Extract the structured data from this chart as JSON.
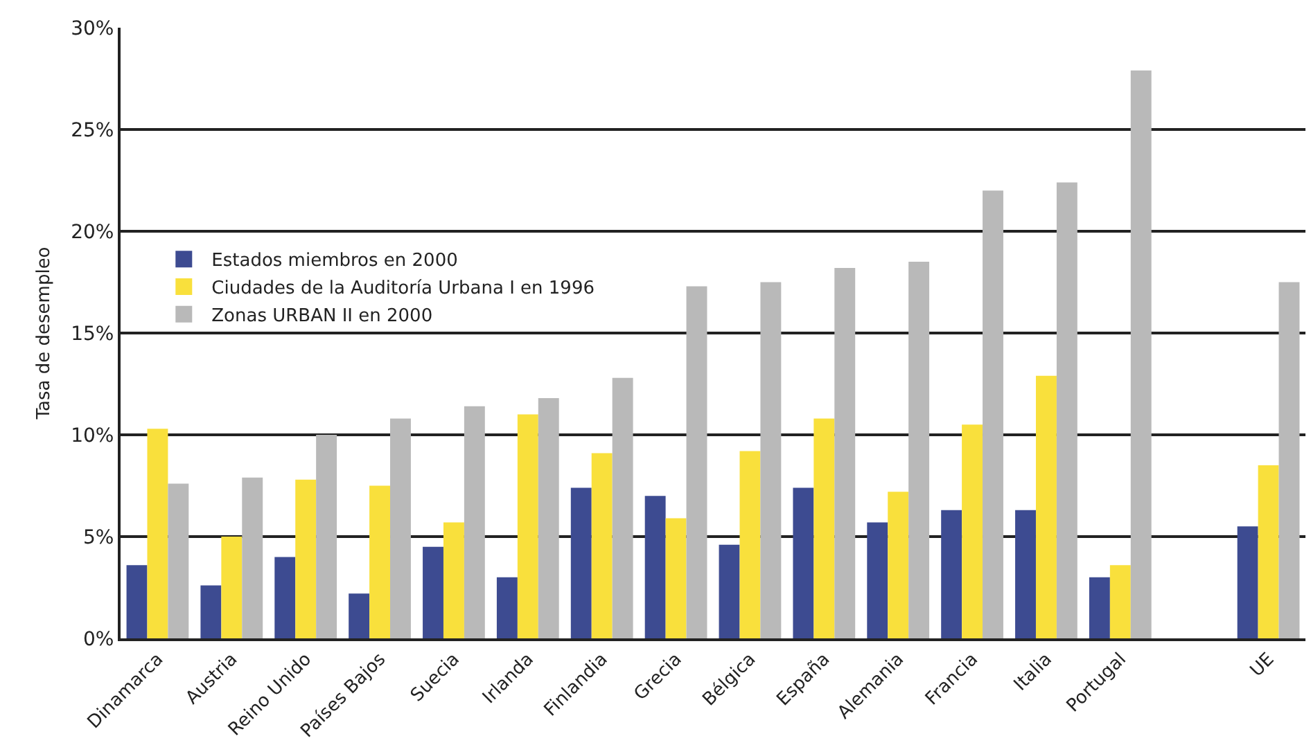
{
  "chart_data": {
    "type": "bar",
    "ylabel": "Tasa de desempleo",
    "categories": [
      "Dinamarca",
      "Austria",
      "Reino Unido",
      "Países Bajos",
      "Suecia",
      "Irlanda",
      "Finlandia",
      "Grecia",
      "Bélgica",
      "España",
      "Alemania",
      "Francia",
      "Italia",
      "Portugal",
      null,
      "UE"
    ],
    "series": [
      {
        "name": "Estados miembros en 2000",
        "color": "#3d4b91",
        "values": [
          3.6,
          2.6,
          4.0,
          2.2,
          4.5,
          3.0,
          7.4,
          7.0,
          4.6,
          7.4,
          5.7,
          6.3,
          6.3,
          3.0,
          null,
          5.5
        ]
      },
      {
        "name": "Ciudades de la Auditoría Urbana I en 1996",
        "color": "#f9e03c",
        "values": [
          10.3,
          5.0,
          7.8,
          7.5,
          5.7,
          11.0,
          9.1,
          5.9,
          9.2,
          10.8,
          7.2,
          10.5,
          12.9,
          3.6,
          null,
          8.5
        ]
      },
      {
        "name": "Zonas URBAN II en 2000",
        "color": "#b9b9b9",
        "values": [
          7.6,
          7.9,
          10.0,
          10.8,
          11.4,
          11.8,
          12.8,
          17.3,
          17.5,
          18.2,
          18.5,
          22.0,
          22.4,
          27.9,
          null,
          17.5
        ]
      }
    ],
    "ylim": [
      0,
      30
    ],
    "yticks": [
      {
        "value": 0,
        "label": "0%"
      },
      {
        "value": 5,
        "label": "5%"
      },
      {
        "value": 10,
        "label": "10%"
      },
      {
        "value": 15,
        "label": "15%"
      },
      {
        "value": 20,
        "label": "20%"
      },
      {
        "value": 25,
        "label": "25%"
      },
      {
        "value": 30,
        "label": "30%"
      }
    ],
    "grid": "y",
    "legend": "top left"
  }
}
